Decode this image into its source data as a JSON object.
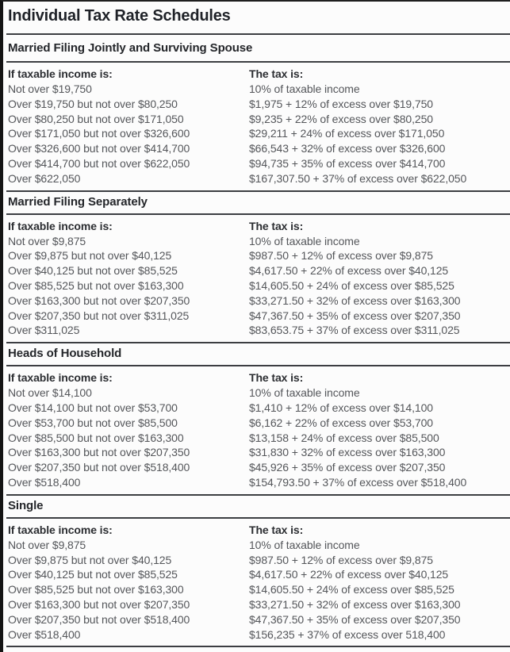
{
  "title": "Individual Tax Rate Schedules",
  "column_headers": {
    "income": "If taxable income is:",
    "tax": "The tax is:"
  },
  "schedules": [
    {
      "name": "Married Filing Jointly and Surviving Spouse",
      "rows": [
        {
          "income": "Not over $19,750",
          "tax": "10% of taxable income"
        },
        {
          "income": "Over $19,750 but not over $80,250",
          "tax": "$1,975 + 12% of excess over $19,750"
        },
        {
          "income": "Over $80,250 but not over $171,050",
          "tax": "$9,235 + 22% of excess over $80,250"
        },
        {
          "income": "Over $171,050 but not over $326,600",
          "tax": "$29,211 + 24% of excess over $171,050"
        },
        {
          "income": "Over $326,600 but not over $414,700",
          "tax": "$66,543 + 32% of excess over $326,600"
        },
        {
          "income": "Over $414,700 but not over $622,050",
          "tax": "$94,735 + 35% of excess over $414,700"
        },
        {
          "income": "Over $622,050",
          "tax": "$167,307.50 + 37% of excess over $622,050"
        }
      ]
    },
    {
      "name": "Married Filing Separately",
      "rows": [
        {
          "income": "Not over $9,875",
          "tax": "10% of taxable income"
        },
        {
          "income": "Over $9,875 but not over $40,125",
          "tax": "$987.50 + 12% of excess over $9,875"
        },
        {
          "income": "Over $40,125 but not over $85,525",
          "tax": "$4,617.50 + 22% of excess over $40,125"
        },
        {
          "income": "Over $85,525 but not over $163,300",
          "tax": "$14,605.50 + 24% of excess over $85,525"
        },
        {
          "income": "Over $163,300 but not over $207,350",
          "tax": "$33,271.50 + 32% of excess over $163,300"
        },
        {
          "income": "Over $207,350 but not over $311,025",
          "tax": "$47,367.50 + 35% of excess over $207,350"
        },
        {
          "income": "Over $311,025",
          "tax": "$83,653.75 + 37% of excess over $311,025"
        }
      ]
    },
    {
      "name": "Heads of Household",
      "rows": [
        {
          "income": "Not over $14,100",
          "tax": "10% of taxable income"
        },
        {
          "income": "Over $14,100 but not over $53,700",
          "tax": "$1,410 + 12% of excess over $14,100"
        },
        {
          "income": "Over $53,700 but not over $85,500",
          "tax": "$6,162 + 22% of excess over $53,700"
        },
        {
          "income": "Over $85,500 but not over $163,300",
          "tax": "$13,158 + 24% of excess over $85,500"
        },
        {
          "income": "Over $163,300 but not over $207,350",
          "tax": "$31,830 + 32% of excess over $163,300"
        },
        {
          "income": "Over $207,350 but not over $518,400",
          "tax": "$45,926 + 35% of excess over $207,350"
        },
        {
          "income": "Over $518,400",
          "tax": "$154,793.50 + 37% of excess over $518,400"
        }
      ]
    },
    {
      "name": "Single",
      "rows": [
        {
          "income": "Not over $9,875",
          "tax": "10% of taxable income"
        },
        {
          "income": "Over $9,875 but not over $40,125",
          "tax": "$987.50 + 12% of excess over $9,875"
        },
        {
          "income": "Over $40,125 but not over $85,525",
          "tax": "$4,617.50 + 22% of excess over $40,125"
        },
        {
          "income": "Over $85,525 but not over $163,300",
          "tax": "$14,605.50 + 24% of excess over $85,525"
        },
        {
          "income": "Over $163,300 but not over $207,350",
          "tax": "$33,271.50 + 32% of excess over $163,300"
        },
        {
          "income": "Over $207,350 but not over $518,400",
          "tax": "$47,367.50 + 35% of excess over $207,350"
        },
        {
          "income": "Over $518,400",
          "tax": "$156,235 + 37% of excess over 518,400"
        }
      ]
    }
  ],
  "colors": {
    "text_heading": "#1f2228",
    "text_body": "#54565a",
    "rule": "#3c3e42",
    "frame": "#141414",
    "background": "#fcfcfc"
  }
}
